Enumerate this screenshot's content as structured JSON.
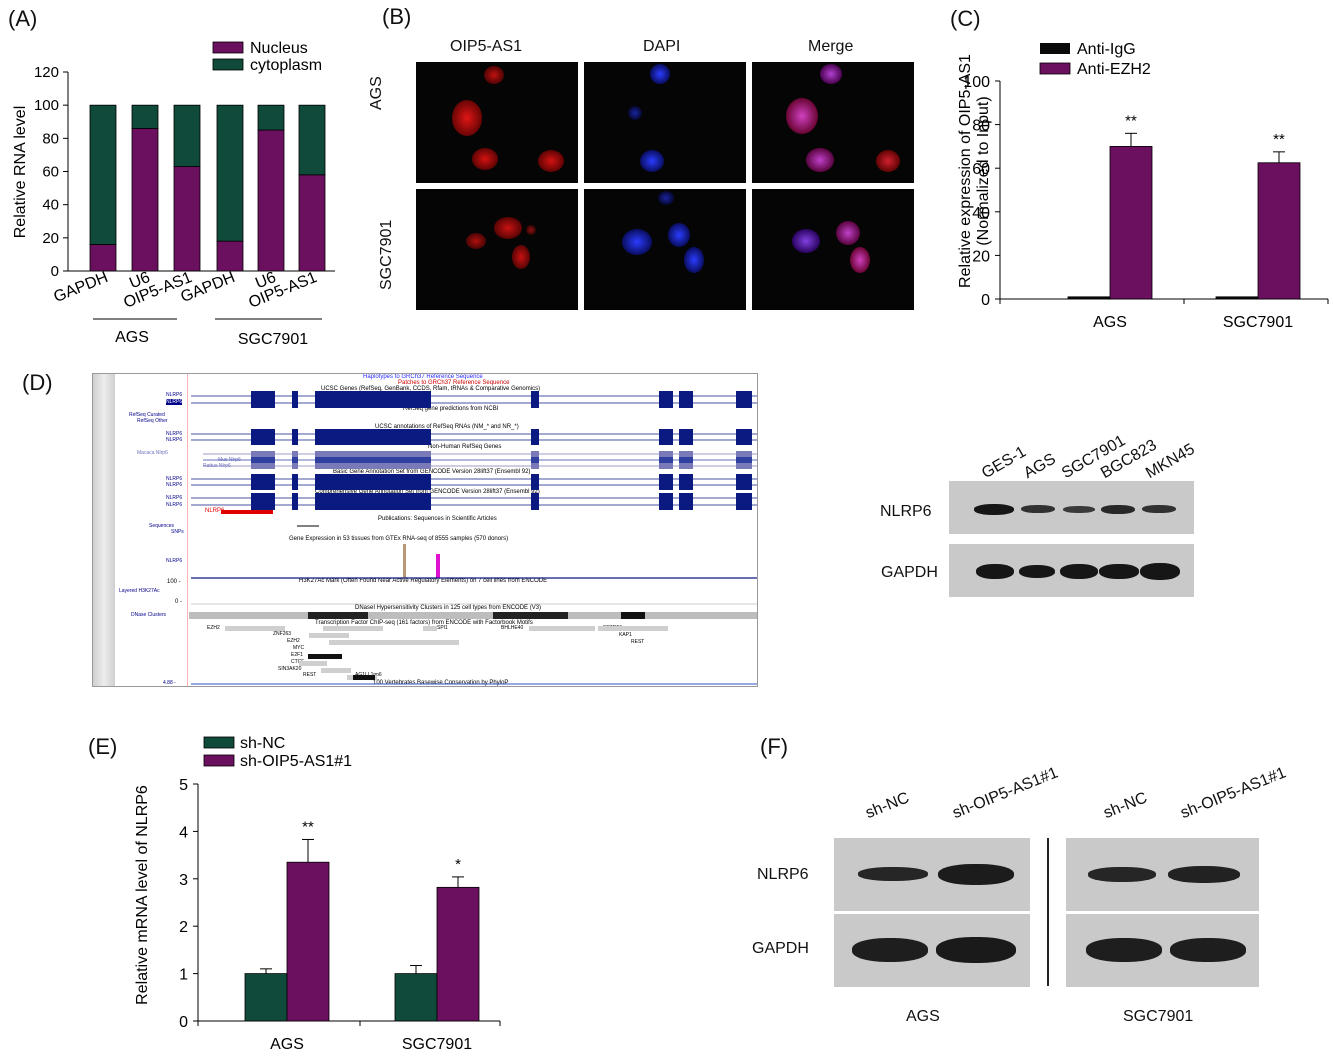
{
  "panels": {
    "A": "(A)",
    "B": "(B)",
    "C": "(C)",
    "D": "(D)",
    "E": "(E)",
    "F": "(F)"
  },
  "colors": {
    "purple": "#6b0f5f",
    "green": "#0f4a3a",
    "black": "#0a0a0a"
  },
  "chart_data": [
    {
      "id": "A",
      "type": "bar",
      "stacked": true,
      "categories": [
        "GAPDH",
        "U6",
        "OIP5-AS1",
        "GAPDH",
        "U6",
        "OIP5-AS1"
      ],
      "groups": [
        "AGS",
        "SGC7901"
      ],
      "series": [
        {
          "name": "Nucleus",
          "values": [
            16,
            86,
            63,
            18,
            85,
            58
          ]
        },
        {
          "name": "cytoplasm",
          "values": [
            84,
            14,
            37,
            82,
            15,
            42
          ]
        }
      ],
      "ylabel": "Relative RNA level",
      "ylim": [
        0,
        120
      ],
      "yticks": [
        "0",
        "20",
        "40",
        "60",
        "80",
        "100",
        "120"
      ],
      "legend": "top-right"
    },
    {
      "id": "C",
      "type": "bar",
      "categories": [
        "AGS",
        "SGC7901"
      ],
      "series": [
        {
          "name": "Anti-IgG",
          "values": [
            1,
            1
          ],
          "err": [
            0,
            0
          ]
        },
        {
          "name": "Anti-EZH2",
          "values": [
            70,
            62.5
          ],
          "err": [
            6,
            5
          ]
        }
      ],
      "annotations": [
        "**",
        "**"
      ],
      "ylabel": "Relative expression of OIP5-AS1",
      "ylabel2": "(Normalized to Input)",
      "ylim": [
        0,
        100
      ],
      "yticks": [
        "0",
        "20",
        "40",
        "60",
        "80",
        "100"
      ],
      "legend": "top-left"
    },
    {
      "id": "E",
      "type": "bar",
      "categories": [
        "AGS",
        "SGC7901"
      ],
      "series": [
        {
          "name": "sh-NC",
          "values": [
            1.0,
            1.0
          ],
          "err": [
            0.1,
            0.17
          ]
        },
        {
          "name": "sh-OIP5-AS1#1",
          "values": [
            3.35,
            2.82
          ],
          "err": [
            0.48,
            0.22
          ]
        }
      ],
      "annotations": [
        "**",
        "*"
      ],
      "ylabel": "Relative mRNA level of NLRP6",
      "ylim": [
        0,
        5
      ],
      "yticks": [
        "0",
        "1",
        "2",
        "3",
        "4",
        "5"
      ],
      "legend": "top-left"
    }
  ],
  "panelB": {
    "columns": [
      "OIP5-AS1",
      "DAPI",
      "Merge"
    ],
    "rows": [
      "AGS",
      "SGC7901"
    ]
  },
  "panelD": {
    "lanes": [
      "GES-1",
      "AGS",
      "SGC7901",
      "BGC823",
      "MKN45"
    ],
    "rows": [
      "NLRP6",
      "GAPDH"
    ],
    "browser": {
      "line1": "Haplotypes to GRCh37 Reference Sequence",
      "line2": "Patches to GRCh37 Reference Sequence",
      "ucsc": "UCSC Genes (RefSeq, GenBank, CCDS, Rfam, tRNAs & Comparative Genomics)",
      "refseq_pred": "RefSeq gene predictions from NCBI",
      "refseq_curated": "RefSeq Curated",
      "refseq_other": "RefSeq Other",
      "ucsc_annot": "UCSC annotations of RefSeq RNAs (NM_* and NR_*)",
      "nonhuman": "Non-Human RefSeq Genes",
      "macaca": "Macaca Nlrp6",
      "mus": "Mus Nlrp6",
      "rattus": "Rattus Nlrp6",
      "basic": "Basic Gene Annotation Set from GENCODE Version 28lift37 (Ensembl 92)",
      "comp": "Comprehensive Gene Annotation Set from GENCODE Version 28lift37 (Ensembl 92)",
      "nlrp6": "NLRP6",
      "pubs": "Publications: Sequences in Scientific Articles",
      "sequences": "Sequences",
      "snps": "SNPs",
      "gtex": "Gene Expression in 53 tissues from GTEx RNA-seq of 8555 samples (570 donors)",
      "h3k": "H3K27Ac Mark (Often Found Near Active Regulatory Elements) on 7 cell lines from ENCODE",
      "layered": "Layered H3K27Ac",
      "y100": "100 -",
      "y0": "0 -",
      "dnase": "DNaseI Hypersensitivity Clusters in 125 cell types from ENCODE (V3)",
      "dnase_label": "DNase Clusters",
      "tfbs": "Transcription Factor ChIP-seq (161 factors) from ENCODE with Factorbook Motifs",
      "tf": [
        "EZH2",
        "ZNF263",
        "EZH2",
        "MYC",
        "E2F1",
        "CTCF",
        "SIN3AK20",
        "REST",
        "SPI1",
        "BHLHE40",
        "SETDB1",
        "KAP1",
        "REST",
        "AG1LL1pp6"
      ],
      "cons": "100 Vertebrates Basewise Conservation by PhyloP",
      "cons_val": "4.88 -"
    }
  },
  "panelF": {
    "lanes": [
      "sh-NC",
      "sh-OIP5-AS1#1",
      "sh-NC",
      "sh-OIP5-AS1#1"
    ],
    "rows": [
      "NLRP6",
      "GAPDH"
    ],
    "groups": [
      "AGS",
      "SGC7901"
    ]
  }
}
